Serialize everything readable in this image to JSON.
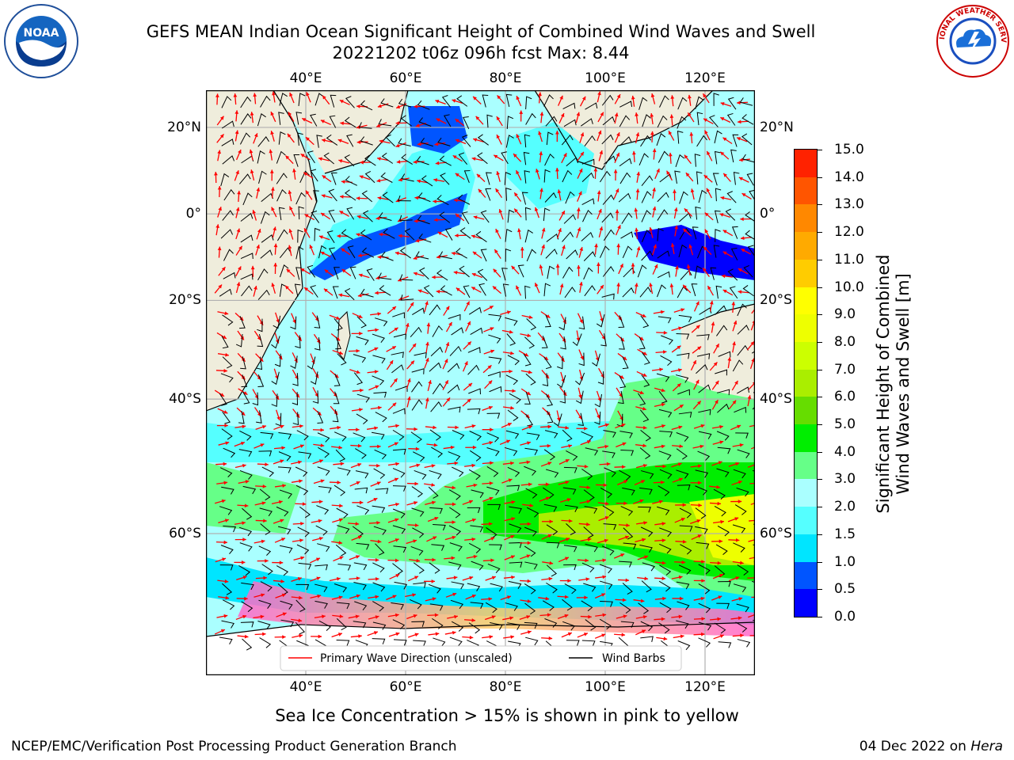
{
  "title": {
    "line1": "GEFS MEAN Indian Ocean Significant Height of Combined Wind Waves and Swell",
    "line2": "20221202 t06z 096h fcst   Max: 8.44"
  },
  "logos": {
    "noaa": {
      "text": "NOAA",
      "icon": "noaa-logo-icon"
    },
    "nws": {
      "text": "NATIONAL WEATHER SERVICE",
      "icon": "nws-logo-icon"
    }
  },
  "map": {
    "lon_ticks": [
      "40°E",
      "60°E",
      "80°E",
      "100°E",
      "120°E"
    ],
    "lon_values": [
      40,
      60,
      80,
      100,
      120
    ],
    "lat_ticks": [
      "20°N",
      "0°",
      "20°S",
      "40°S",
      "60°S"
    ],
    "lat_values": [
      20,
      0,
      -20,
      -40,
      -60
    ],
    "lon_range": [
      20,
      130
    ],
    "lat_range": [
      -73,
      28
    ],
    "land_color": "#efeddc",
    "legend": {
      "wave_direction": "Primary Wave Direction (unscaled)",
      "wind_barbs": "Wind Barbs",
      "wave_color": "#ff0000",
      "barb_color": "#000000"
    }
  },
  "colorbar": {
    "title_line1": "Significant Height of Combined",
    "title_line2": "Wind Waves and Swell [m]",
    "ticks": [
      "15.0",
      "14.0",
      "13.0",
      "12.0",
      "11.0",
      "10.0",
      "9.0",
      "8.0",
      "7.0",
      "6.0",
      "5.0",
      "4.0",
      "3.0",
      "2.0",
      "1.5",
      "1.0",
      "0.5",
      "0.0"
    ],
    "colors": [
      "#0000ff",
      "#0055ff",
      "#00e5ff",
      "#55ffff",
      "#aaffff",
      "#66ff88",
      "#00ee00",
      "#66dd00",
      "#aaee00",
      "#ccff00",
      "#eeff00",
      "#ffff00",
      "#ffcc00",
      "#ffaa00",
      "#ff8800",
      "#ff5500",
      "#ff2200"
    ]
  },
  "ice_note": "Sea Ice Concentration > 15% is shown in pink to yellow",
  "footer": {
    "left": "NCEP/EMC/Verification Post Processing Product Generation Branch",
    "date": "04 Dec 2022 on ",
    "host": "Hera"
  }
}
